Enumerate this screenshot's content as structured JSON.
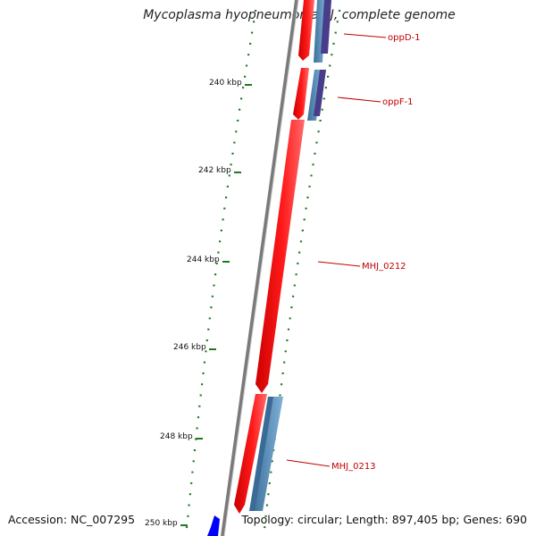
{
  "title": "Mycoplasma hyopneumoniae J, complete genome",
  "footer": {
    "accession": "Accession: NC_007295",
    "summary": "Topology: circular; Length: 897,405 bp; Genes: 690"
  },
  "ticks": [
    "240 kbp",
    "242 kbp",
    "244 kbp",
    "246 kbp",
    "248 kbp",
    "250 kbp"
  ],
  "genes": [
    {
      "label": "oppD-1",
      "strand": "reverse",
      "color": "#ff0000"
    },
    {
      "label": "oppF-1",
      "strand": "reverse",
      "color": "#ff0000"
    },
    {
      "label": "MHJ_0212",
      "strand": "reverse",
      "color": "#ff0000"
    },
    {
      "label": "MHJ_0213",
      "strand": "reverse",
      "color": "#ff0000"
    }
  ],
  "colors": {
    "forward_cds": "#ff0000",
    "feature_blue": "#4682b4",
    "feature_navy": "#483d8b",
    "forward_strand_gene": "#0000ff",
    "backbone": "#888888",
    "gc_ticks": "#1f7a1f",
    "label": "#c00000"
  }
}
